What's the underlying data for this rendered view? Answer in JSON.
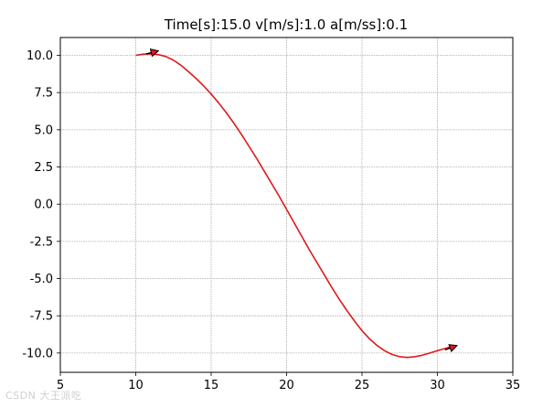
{
  "chart_data": {
    "type": "line",
    "title": "Time[s]:15.0 v[m/s]:1.0 a[m/ss]:0.1",
    "xlabel": "",
    "ylabel": "",
    "xlim": [
      5,
      35
    ],
    "ylim": [
      -11.3,
      11.2
    ],
    "grid": true,
    "xticks": [
      5,
      10,
      15,
      20,
      25,
      30,
      35
    ],
    "yticks": [
      -10.0,
      -7.5,
      -5.0,
      -2.5,
      0.0,
      2.5,
      5.0,
      7.5,
      10.0
    ],
    "series": [
      {
        "color": "#e0191b",
        "x": [
          10.0,
          10.5,
          11.0,
          11.5,
          12.0,
          12.5,
          13.0,
          13.5,
          14.0,
          14.5,
          15.0,
          15.5,
          16.0,
          16.5,
          17.0,
          17.5,
          18.0,
          18.5,
          19.0,
          19.5,
          20.0,
          20.5,
          21.0,
          21.5,
          22.0,
          22.5,
          23.0,
          23.5,
          24.0,
          24.5,
          25.0,
          25.5,
          26.0,
          26.5,
          27.0,
          27.5,
          28.0,
          28.5,
          29.0,
          29.5,
          30.0,
          30.5,
          31.0
        ],
        "y": [
          10.0,
          10.08,
          10.1,
          10.05,
          9.92,
          9.68,
          9.33,
          8.9,
          8.45,
          7.95,
          7.4,
          6.8,
          6.15,
          5.45,
          4.7,
          3.9,
          3.1,
          2.25,
          1.4,
          0.55,
          -0.35,
          -1.25,
          -2.15,
          -3.05,
          -3.9,
          -4.75,
          -5.6,
          -6.4,
          -7.15,
          -7.85,
          -8.5,
          -9.05,
          -9.5,
          -9.85,
          -10.1,
          -10.25,
          -10.3,
          -10.25,
          -10.15,
          -10.0,
          -9.85,
          -9.7,
          -9.55
        ]
      }
    ],
    "arrows": [
      {
        "x": 11.5,
        "y": 10.3,
        "angle_deg": 14
      },
      {
        "x": 31.3,
        "y": -9.5,
        "angle_deg": 20
      }
    ]
  },
  "watermark": "CSDN 大王派吃"
}
